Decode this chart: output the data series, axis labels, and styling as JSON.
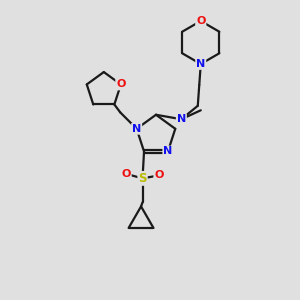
{
  "bg_color": "#e0e0e0",
  "bond_color": "#1a1a1a",
  "N_color": "#1010ee",
  "O_color": "#ee1010",
  "S_color": "#bbbb00",
  "line_width": 1.6,
  "font_size_atom": 8.0,
  "xlim": [
    0,
    10
  ],
  "ylim": [
    0,
    10
  ]
}
